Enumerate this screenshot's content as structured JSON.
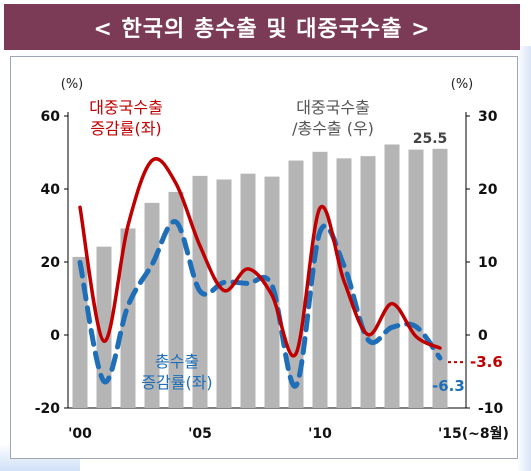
{
  "title": "< 한국의 총수출 및 대중국수출 >",
  "chart_data": {
    "type": "bar+line",
    "left_axis": {
      "unit": "(%)",
      "range": [
        -20,
        60
      ],
      "ticks": [
        -20,
        0,
        20,
        40,
        60
      ]
    },
    "right_axis": {
      "unit": "(%)",
      "range": [
        -10,
        30
      ],
      "ticks": [
        -10,
        0,
        10,
        20,
        30
      ]
    },
    "x_ticks": [
      {
        "year": 2000,
        "label": "'00"
      },
      {
        "year": 2005,
        "label": "'05"
      },
      {
        "year": 2010,
        "label": "'10"
      },
      {
        "year": 2015,
        "label": "'15(~8월)"
      }
    ],
    "bars": {
      "name": "대중국수출\n/총수출 (우)",
      "axis": "right",
      "color": "#b5b5b5",
      "x": [
        2000,
        2001,
        2002,
        2003,
        2004,
        2005,
        2006,
        2007,
        2008,
        2009,
        2010,
        2011,
        2012,
        2013,
        2014,
        2015
      ],
      "values": [
        10.7,
        12.1,
        14.6,
        18.1,
        19.6,
        21.8,
        21.3,
        22.1,
        21.7,
        23.9,
        25.1,
        24.2,
        24.5,
        26.1,
        25.4,
        25.5
      ],
      "end_label": "25.5"
    },
    "series": [
      {
        "name": "대중국수출\n증감률(좌)",
        "axis": "left",
        "color": "#c00000",
        "style": "solid",
        "x": [
          2000,
          2001,
          2002,
          2003,
          2004,
          2005,
          2006,
          2007,
          2008,
          2009,
          2010,
          2011,
          2012,
          2013,
          2014,
          2015
        ],
        "values": [
          35,
          -1.7,
          30,
          47.8,
          41.5,
          24.4,
          12.2,
          18.1,
          10.9,
          -5.1,
          34.8,
          14.8,
          0.1,
          8.6,
          -0.4,
          -3.6
        ],
        "end_label": "-3.6"
      },
      {
        "name": "총수출\n증감률(좌)",
        "axis": "left",
        "color": "#1f6fb8",
        "style": "dashed",
        "x": [
          2000,
          2001,
          2002,
          2003,
          2004,
          2005,
          2006,
          2007,
          2008,
          2009,
          2010,
          2011,
          2012,
          2013,
          2014,
          2015
        ],
        "values": [
          19.9,
          -12.7,
          8,
          19.3,
          31,
          12,
          14.4,
          14.1,
          13.6,
          -13.9,
          28.3,
          19,
          -1.3,
          2.1,
          2.3,
          -6.3
        ],
        "end_label": "-6.3"
      }
    ]
  }
}
